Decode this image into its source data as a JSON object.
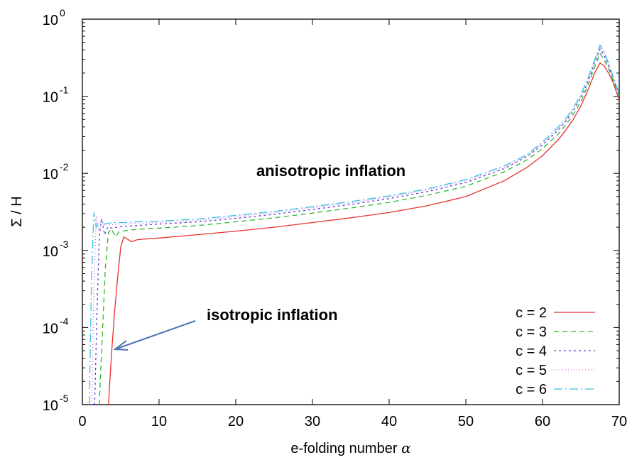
{
  "chart_data": {
    "type": "line",
    "title": "",
    "xlabel_text": "e-folding number ",
    "xlabel_symbol": "α",
    "ylabel": "Σ / H",
    "xlim": [
      0,
      70
    ],
    "ylim": [
      1e-05,
      1
    ],
    "yscale": "log",
    "grid": false,
    "legend_position": "bottom-right",
    "x_ticks": [
      "0",
      "10",
      "20",
      "30",
      "40",
      "50",
      "60",
      "70"
    ],
    "x_tick_values": [
      0,
      10,
      20,
      30,
      40,
      50,
      60,
      70
    ],
    "y_ticks": [
      {
        "base": "10",
        "exp": "-5",
        "value": 1e-05
      },
      {
        "base": "10",
        "exp": "-4",
        "value": 0.0001
      },
      {
        "base": "10",
        "exp": "-3",
        "value": 0.001
      },
      {
        "base": "10",
        "exp": "-2",
        "value": 0.01
      },
      {
        "base": "10",
        "exp": "-1",
        "value": 0.1
      },
      {
        "base": "10",
        "exp": "0",
        "value": 1
      }
    ],
    "annotations": {
      "anisotropic": "anisotropic inflation",
      "isotropic": "isotropic inflation"
    },
    "series": [
      {
        "name": "c = 2",
        "color": "#e8312f",
        "dash": "",
        "x": [
          3.4,
          3.8,
          4.2,
          4.6,
          5.0,
          5.4,
          5.9,
          6.4,
          7.2,
          8,
          10,
          15,
          20,
          25,
          30,
          35,
          40,
          45,
          50,
          55,
          58,
          60,
          62,
          63,
          64,
          65,
          66,
          66.8,
          67.5,
          68,
          68.6,
          69.2,
          70
        ],
        "y": [
          1e-05,
          4.5e-05,
          0.00016,
          0.00045,
          0.0011,
          0.0015,
          0.0014,
          0.0013,
          0.00138,
          0.0014,
          0.00145,
          0.0016,
          0.00178,
          0.002,
          0.0023,
          0.00265,
          0.0031,
          0.0038,
          0.005,
          0.008,
          0.012,
          0.017,
          0.027,
          0.036,
          0.05,
          0.075,
          0.125,
          0.2,
          0.27,
          0.25,
          0.2,
          0.15,
          0.09
        ]
      },
      {
        "name": "c = 3",
        "color": "#2db82d",
        "dash": "7,5",
        "x": [
          2.2,
          2.6,
          3.0,
          3.4,
          3.8,
          4.3,
          4.8,
          5.5,
          6.5,
          8,
          10,
          15,
          20,
          25,
          30,
          35,
          40,
          45,
          50,
          55,
          58,
          60,
          62,
          63,
          64,
          65,
          66,
          66.8,
          67.5,
          68,
          68.6,
          69.2,
          70
        ],
        "y": [
          1e-05,
          8e-05,
          0.0006,
          0.0017,
          0.0019,
          0.0015,
          0.00175,
          0.0018,
          0.00185,
          0.0019,
          0.00195,
          0.0021,
          0.00235,
          0.00265,
          0.00305,
          0.00355,
          0.0042,
          0.0052,
          0.0068,
          0.0105,
          0.015,
          0.021,
          0.032,
          0.042,
          0.058,
          0.085,
          0.145,
          0.24,
          0.36,
          0.3,
          0.23,
          0.16,
          0.1
        ]
      },
      {
        "name": "c = 4",
        "color": "#5e3ed6",
        "dash": "3,4",
        "x": [
          1.6,
          1.9,
          2.2,
          2.5,
          2.9,
          3.3,
          3.8,
          4.5,
          5.5,
          7,
          10,
          15,
          20,
          25,
          30,
          35,
          40,
          45,
          50,
          55,
          58,
          60,
          62,
          63,
          64,
          65,
          66,
          66.8,
          67.5,
          68,
          68.6,
          69.2,
          70
        ],
        "y": [
          1e-05,
          0.00015,
          0.0015,
          0.0026,
          0.0016,
          0.002,
          0.00195,
          0.002,
          0.00205,
          0.0021,
          0.0022,
          0.00235,
          0.0026,
          0.00295,
          0.0034,
          0.00395,
          0.0047,
          0.0058,
          0.0076,
          0.0115,
          0.0165,
          0.0235,
          0.036,
          0.047,
          0.065,
          0.095,
          0.16,
          0.27,
          0.41,
          0.34,
          0.25,
          0.17,
          0.105
        ]
      },
      {
        "name": "c = 5",
        "color": "#d264d6",
        "dash": "1,3",
        "x": [
          1.2,
          1.5,
          1.8,
          2.1,
          2.5,
          3.0,
          3.6,
          4.4,
          5.5,
          7,
          10,
          15,
          20,
          25,
          30,
          35,
          40,
          45,
          50,
          55,
          58,
          60,
          62,
          63,
          64,
          65,
          66,
          66.8,
          67.5,
          68,
          68.6,
          69.2,
          70
        ],
        "y": [
          1e-05,
          0.0003,
          0.0028,
          0.0018,
          0.0023,
          0.0021,
          0.00215,
          0.0022,
          0.0022,
          0.00225,
          0.0023,
          0.00245,
          0.00275,
          0.0031,
          0.0036,
          0.00415,
          0.00495,
          0.0061,
          0.008,
          0.012,
          0.017,
          0.0245,
          0.038,
          0.0495,
          0.068,
          0.1,
          0.17,
          0.285,
          0.44,
          0.36,
          0.26,
          0.175,
          0.108
        ]
      },
      {
        "name": "c = 6",
        "color": "#36c2e6",
        "dash": "12,4,2,4",
        "x": [
          0.9,
          1.2,
          1.5,
          1.8,
          2.2,
          2.7,
          3.3,
          4.2,
          5.5,
          7,
          10,
          15,
          20,
          25,
          30,
          35,
          40,
          45,
          50,
          55,
          58,
          60,
          62,
          63,
          64,
          65,
          66,
          66.8,
          67.5,
          68,
          68.6,
          69.2,
          70
        ],
        "y": [
          1e-05,
          0.0005,
          0.0031,
          0.002,
          0.0024,
          0.0022,
          0.00225,
          0.0023,
          0.0023,
          0.00235,
          0.0024,
          0.00255,
          0.00285,
          0.0032,
          0.0037,
          0.0043,
          0.0051,
          0.0063,
          0.0083,
          0.0125,
          0.0175,
          0.0255,
          0.0395,
          0.051,
          0.07,
          0.105,
          0.18,
          0.3,
          0.46,
          0.38,
          0.27,
          0.18,
          0.11
        ]
      }
    ]
  }
}
